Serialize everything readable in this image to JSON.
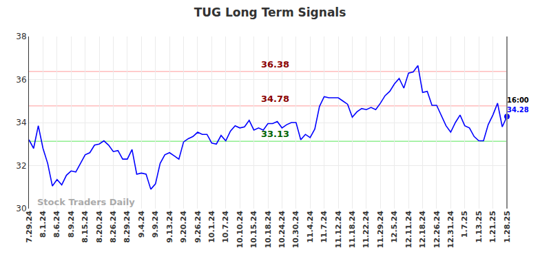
{
  "chart_data": {
    "type": "line",
    "title": "TUG Long Term Signals",
    "categories": [
      "7.29.24",
      null,
      null,
      "8.1.24",
      null,
      null,
      "8.6.24",
      null,
      null,
      "8.9.24",
      null,
      null,
      "8.15.24",
      null,
      null,
      "8.20.24",
      null,
      null,
      "8.26.24",
      null,
      null,
      "8.29.24",
      null,
      null,
      "9.4.24",
      null,
      null,
      "9.9.24",
      null,
      null,
      "9.13.24",
      null,
      null,
      "9.20.24",
      null,
      null,
      "9.26.24",
      null,
      null,
      "10.1.24",
      null,
      null,
      "10.7.24",
      null,
      null,
      "10.10.24",
      null,
      null,
      "10.15.24",
      null,
      null,
      "10.18.24",
      null,
      null,
      "10.24.24",
      null,
      null,
      "10.30.24",
      null,
      null,
      "11.4.24",
      null,
      null,
      "11.7.24",
      null,
      null,
      "11.12.24",
      null,
      null,
      "11.18.24",
      null,
      null,
      "11.22.24",
      null,
      null,
      "11.29.24",
      null,
      null,
      "12.5.24",
      null,
      null,
      "12.11.24",
      null,
      null,
      "12.18.24",
      null,
      null,
      "12.26.24",
      null,
      null,
      "12.31.24",
      null,
      null,
      "1.7.25",
      null,
      null,
      "1.13.25",
      null,
      null,
      "1.21.25",
      null,
      null,
      "1.28.25"
    ],
    "values": [
      33.2,
      32.8,
      33.85,
      32.8,
      32.1,
      31.05,
      31.35,
      31.1,
      31.55,
      31.75,
      31.7,
      32.1,
      32.5,
      32.6,
      32.95,
      33.0,
      33.15,
      32.95,
      32.65,
      32.7,
      32.3,
      32.3,
      32.75,
      31.6,
      31.65,
      31.6,
      30.9,
      31.15,
      32.1,
      32.5,
      32.6,
      32.45,
      32.3,
      33.1,
      33.25,
      33.35,
      33.55,
      33.45,
      33.45,
      33.05,
      33.0,
      33.4,
      33.15,
      33.6,
      33.85,
      33.75,
      33.8,
      34.1,
      33.65,
      33.75,
      33.65,
      33.95,
      33.95,
      34.05,
      33.75,
      33.9,
      34.0,
      34.0,
      33.2,
      33.45,
      33.3,
      33.7,
      34.75,
      35.2,
      35.15,
      35.15,
      35.15,
      35.0,
      34.85,
      34.25,
      34.5,
      34.65,
      34.6,
      34.7,
      34.6,
      34.9,
      35.25,
      35.45,
      35.8,
      36.05,
      35.6,
      36.3,
      36.35,
      36.65,
      35.4,
      35.45,
      34.8,
      34.8,
      34.3,
      33.85,
      33.55,
      34.0,
      34.35,
      33.85,
      33.75,
      33.35,
      33.15,
      33.15,
      33.9,
      34.35,
      34.9,
      33.8,
      34.28
    ],
    "color": "#0000ff",
    "ylim": [
      30,
      38
    ],
    "yticks": [
      30,
      32,
      34,
      36,
      38
    ],
    "grid": true,
    "reference_lines": [
      {
        "value": 36.38,
        "label": "36.38",
        "color": "#ffbcbc",
        "label_color": "#8b0000"
      },
      {
        "value": 34.78,
        "label": "34.78",
        "color": "#ffbcbc",
        "label_color": "#8b0000"
      },
      {
        "value": 33.13,
        "label": "33.13",
        "color": "#90ee90",
        "label_color": "#006400"
      }
    ],
    "last_point": {
      "time_label": "16:00",
      "value_label": "34.28"
    },
    "watermark": "Stock Traders Daily"
  }
}
